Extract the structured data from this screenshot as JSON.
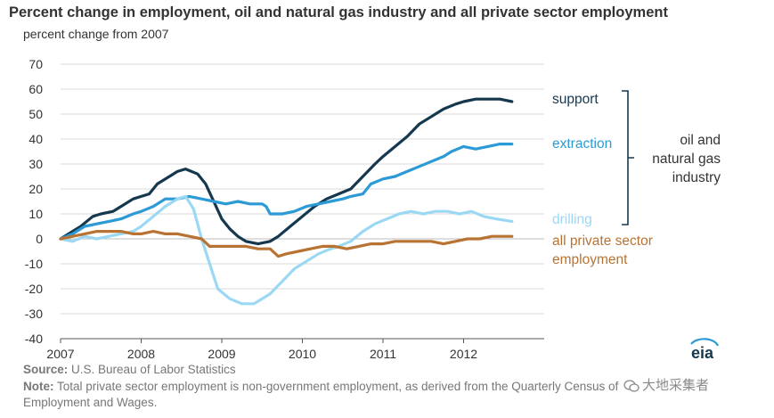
{
  "header": {
    "title": "Percent change in employment, oil and natural gas industry and all private sector employment",
    "subtitle": "percent change  from 2007"
  },
  "footer": {
    "source_label": "Source:",
    "source_text": " U.S. Bureau of Labor Statistics",
    "note_label": "Note:",
    "note_text": " Total private sector employment is non-government employment, as derived from the Quarterly Census of",
    "note_text_2": "Employment and Wages."
  },
  "logo": {
    "text": "eia"
  },
  "watermark": {
    "text": "大地采集者"
  },
  "colors": {
    "support": "#16384f",
    "extraction": "#2b9ad6",
    "drilling": "#9bd8f3",
    "private": "#b87333",
    "bracket": "#16384f",
    "grid": "#d9d9d9"
  },
  "chart_data": {
    "type": "line",
    "title": "Percent change in employment, oil and natural gas industry and all private sector employment",
    "ylabel": "percent change  from 2007",
    "xlabel": "",
    "x_ticks": [
      "2007",
      "2008",
      "2009",
      "2010",
      "2011",
      "2012"
    ],
    "y_ticks": [
      "70",
      "60",
      "50",
      "40",
      "30",
      "20",
      "10",
      "0",
      "-10",
      "-20",
      "-30",
      "-40"
    ],
    "xlim": [
      2007.0,
      2013.0
    ],
    "ylim": [
      -40,
      70
    ],
    "grid": "horizontal",
    "bracket_label": "oil and natural gas industry",
    "series": [
      {
        "name": "support",
        "points": [
          [
            2007.0,
            0
          ],
          [
            2007.1,
            2
          ],
          [
            2007.25,
            5
          ],
          [
            2007.4,
            9
          ],
          [
            2007.5,
            10
          ],
          [
            2007.65,
            11
          ],
          [
            2007.75,
            13
          ],
          [
            2007.9,
            16
          ],
          [
            2008.0,
            17
          ],
          [
            2008.1,
            18
          ],
          [
            2008.2,
            22
          ],
          [
            2008.35,
            25
          ],
          [
            2008.45,
            27
          ],
          [
            2008.55,
            28
          ],
          [
            2008.7,
            26
          ],
          [
            2008.8,
            22
          ],
          [
            2008.9,
            15
          ],
          [
            2009.0,
            8
          ],
          [
            2009.1,
            4
          ],
          [
            2009.2,
            1
          ],
          [
            2009.3,
            -1
          ],
          [
            2009.45,
            -2
          ],
          [
            2009.6,
            -1
          ],
          [
            2009.7,
            1
          ],
          [
            2009.85,
            5
          ],
          [
            2010.0,
            9
          ],
          [
            2010.15,
            13
          ],
          [
            2010.3,
            16
          ],
          [
            2010.45,
            18
          ],
          [
            2010.6,
            20
          ],
          [
            2010.75,
            25
          ],
          [
            2010.9,
            30
          ],
          [
            2011.0,
            33
          ],
          [
            2011.15,
            37
          ],
          [
            2011.3,
            41
          ],
          [
            2011.45,
            46
          ],
          [
            2011.6,
            49
          ],
          [
            2011.75,
            52
          ],
          [
            2011.9,
            54
          ],
          [
            2012.0,
            55
          ],
          [
            2012.15,
            56
          ],
          [
            2012.3,
            56
          ],
          [
            2012.45,
            56
          ],
          [
            2012.6,
            55
          ]
        ]
      },
      {
        "name": "extraction",
        "points": [
          [
            2007.0,
            0
          ],
          [
            2007.15,
            2
          ],
          [
            2007.3,
            5
          ],
          [
            2007.45,
            6
          ],
          [
            2007.6,
            7
          ],
          [
            2007.75,
            8
          ],
          [
            2007.9,
            10
          ],
          [
            2008.0,
            11
          ],
          [
            2008.15,
            13
          ],
          [
            2008.3,
            16
          ],
          [
            2008.45,
            16
          ],
          [
            2008.6,
            17
          ],
          [
            2008.75,
            16
          ],
          [
            2008.9,
            15
          ],
          [
            2009.05,
            14
          ],
          [
            2009.2,
            15
          ],
          [
            2009.35,
            14
          ],
          [
            2009.5,
            14
          ],
          [
            2009.55,
            13
          ],
          [
            2009.6,
            10
          ],
          [
            2009.75,
            10
          ],
          [
            2009.9,
            11
          ],
          [
            2010.05,
            13
          ],
          [
            2010.2,
            14
          ],
          [
            2010.35,
            15
          ],
          [
            2010.5,
            16
          ],
          [
            2010.6,
            17
          ],
          [
            2010.75,
            18
          ],
          [
            2010.85,
            22
          ],
          [
            2011.0,
            24
          ],
          [
            2011.15,
            25
          ],
          [
            2011.3,
            27
          ],
          [
            2011.45,
            29
          ],
          [
            2011.6,
            31
          ],
          [
            2011.75,
            33
          ],
          [
            2011.85,
            35
          ],
          [
            2012.0,
            37
          ],
          [
            2012.15,
            36
          ],
          [
            2012.3,
            37
          ],
          [
            2012.45,
            38
          ],
          [
            2012.6,
            38
          ]
        ]
      },
      {
        "name": "drilling",
        "points": [
          [
            2007.0,
            0
          ],
          [
            2007.15,
            -1
          ],
          [
            2007.3,
            1
          ],
          [
            2007.45,
            0
          ],
          [
            2007.6,
            1
          ],
          [
            2007.75,
            2
          ],
          [
            2007.9,
            3
          ],
          [
            2008.0,
            5
          ],
          [
            2008.15,
            9
          ],
          [
            2008.3,
            13
          ],
          [
            2008.45,
            16
          ],
          [
            2008.55,
            17
          ],
          [
            2008.65,
            12
          ],
          [
            2008.75,
            0
          ],
          [
            2008.85,
            -10
          ],
          [
            2008.95,
            -20
          ],
          [
            2009.1,
            -24
          ],
          [
            2009.25,
            -26
          ],
          [
            2009.4,
            -26
          ],
          [
            2009.5,
            -24
          ],
          [
            2009.6,
            -22
          ],
          [
            2009.75,
            -17
          ],
          [
            2009.9,
            -12
          ],
          [
            2010.05,
            -9
          ],
          [
            2010.2,
            -6
          ],
          [
            2010.35,
            -4
          ],
          [
            2010.45,
            -3
          ],
          [
            2010.6,
            -1
          ],
          [
            2010.75,
            3
          ],
          [
            2010.9,
            6
          ],
          [
            2011.05,
            8
          ],
          [
            2011.2,
            10
          ],
          [
            2011.35,
            11
          ],
          [
            2011.5,
            10
          ],
          [
            2011.65,
            11
          ],
          [
            2011.8,
            11
          ],
          [
            2011.95,
            10
          ],
          [
            2012.1,
            11
          ],
          [
            2012.25,
            9
          ],
          [
            2012.4,
            8
          ],
          [
            2012.6,
            7
          ]
        ]
      },
      {
        "name": "all private sector employment",
        "points": [
          [
            2007.0,
            0
          ],
          [
            2007.15,
            1
          ],
          [
            2007.3,
            2
          ],
          [
            2007.45,
            3
          ],
          [
            2007.6,
            3
          ],
          [
            2007.75,
            3
          ],
          [
            2007.9,
            2
          ],
          [
            2008.0,
            2
          ],
          [
            2008.15,
            3
          ],
          [
            2008.3,
            2
          ],
          [
            2008.45,
            2
          ],
          [
            2008.6,
            1
          ],
          [
            2008.75,
            0
          ],
          [
            2008.85,
            -3
          ],
          [
            2009.0,
            -3
          ],
          [
            2009.15,
            -3
          ],
          [
            2009.3,
            -3
          ],
          [
            2009.45,
            -4
          ],
          [
            2009.6,
            -4
          ],
          [
            2009.7,
            -7
          ],
          [
            2009.8,
            -6
          ],
          [
            2009.95,
            -5
          ],
          [
            2010.1,
            -4
          ],
          [
            2010.25,
            -3
          ],
          [
            2010.4,
            -3
          ],
          [
            2010.55,
            -4
          ],
          [
            2010.7,
            -3
          ],
          [
            2010.85,
            -2
          ],
          [
            2011.0,
            -2
          ],
          [
            2011.15,
            -1
          ],
          [
            2011.3,
            -1
          ],
          [
            2011.45,
            -1
          ],
          [
            2011.6,
            -1
          ],
          [
            2011.75,
            -2
          ],
          [
            2011.9,
            -1
          ],
          [
            2012.05,
            0
          ],
          [
            2012.2,
            0
          ],
          [
            2012.35,
            1
          ],
          [
            2012.5,
            1
          ],
          [
            2012.6,
            1
          ]
        ]
      }
    ]
  }
}
